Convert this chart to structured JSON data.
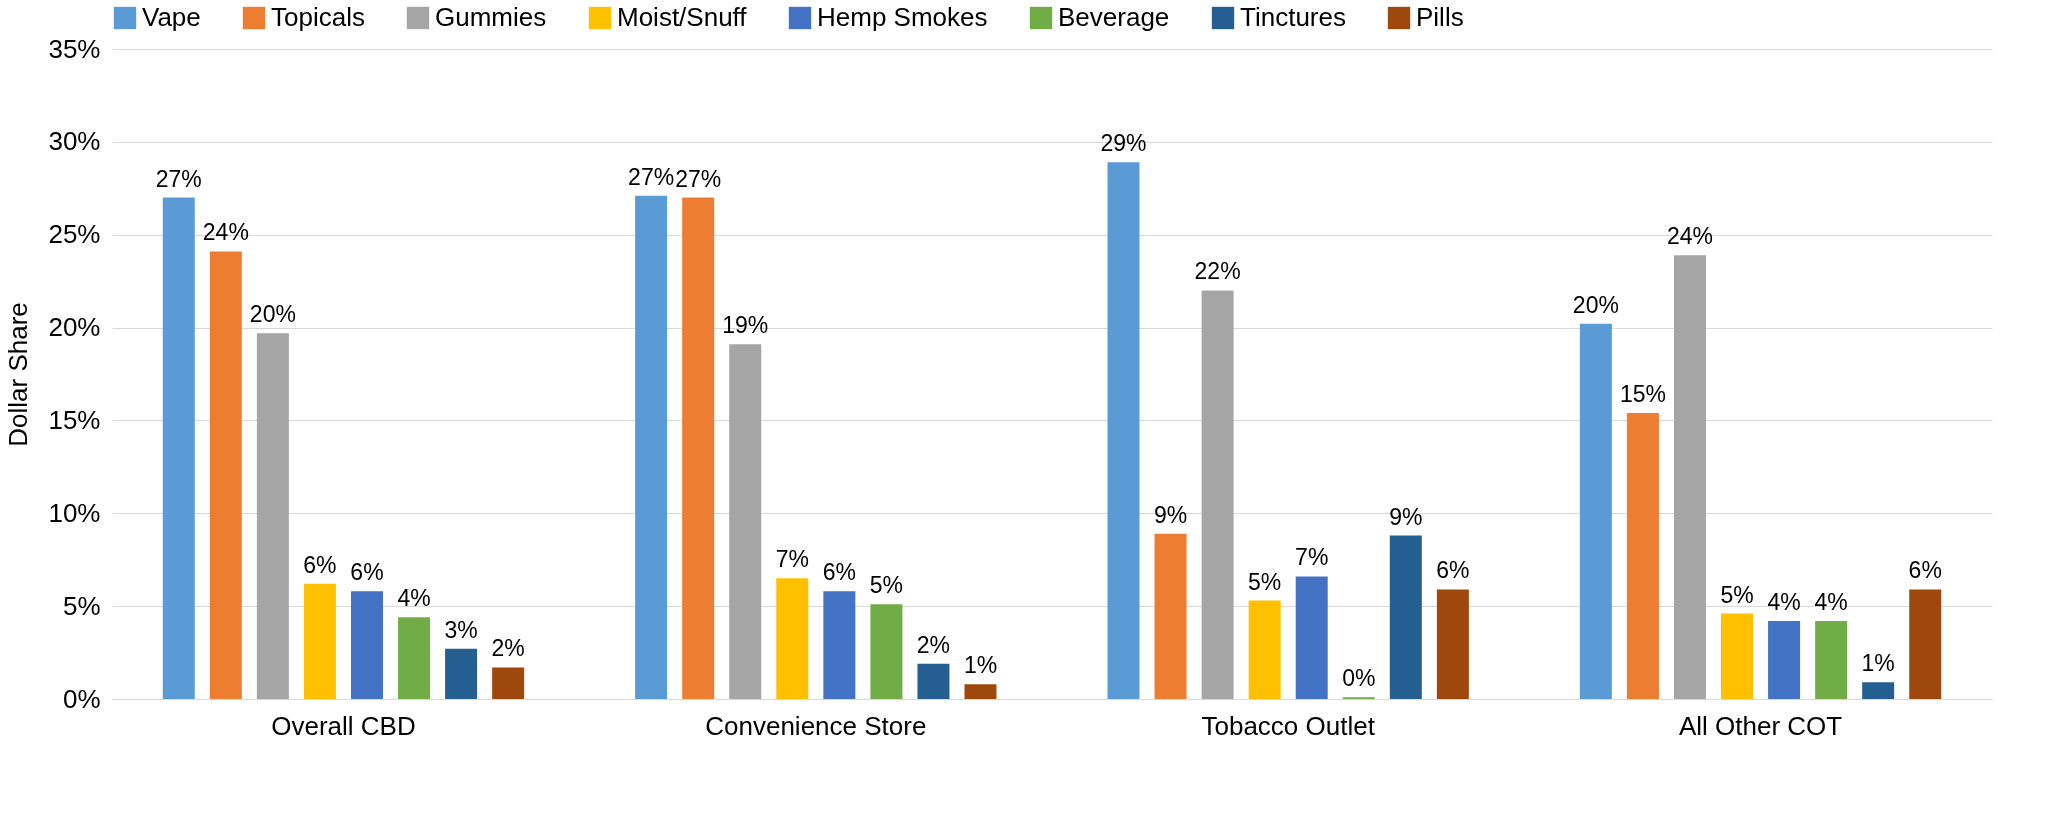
{
  "chart_data": {
    "type": "bar",
    "ylabel": "Dollar Share",
    "categories": [
      "Overall CBD",
      "Convenience Store",
      "Tobacco Outlet",
      "All Other COT"
    ],
    "series": [
      {
        "name": "Vape",
        "color": "#5b9bd5",
        "values": [
          27.0,
          27.1,
          28.9,
          20.2
        ],
        "value_labels": [
          "27%",
          "27%",
          "29%",
          "20%"
        ]
      },
      {
        "name": "Topicals",
        "color": "#ed7d31",
        "values": [
          24.1,
          27.0,
          8.9,
          15.4
        ],
        "value_labels": [
          "24%",
          "27%",
          "9%",
          "15%"
        ]
      },
      {
        "name": "Gummies",
        "color": "#a5a5a5",
        "values": [
          19.7,
          19.1,
          22.0,
          23.9
        ],
        "value_labels": [
          "20%",
          "19%",
          "22%",
          "24%"
        ]
      },
      {
        "name": "Moist/Snuff",
        "color": "#ffc000",
        "values": [
          6.2,
          6.5,
          5.3,
          4.6
        ],
        "value_labels": [
          "6%",
          "7%",
          "5%",
          "5%"
        ]
      },
      {
        "name": "Hemp Smokes",
        "color": "#4472c4",
        "values": [
          5.8,
          5.8,
          6.6,
          4.2
        ],
        "value_labels": [
          "6%",
          "6%",
          "7%",
          "4%"
        ]
      },
      {
        "name": "Beverage",
        "color": "#70ad47",
        "values": [
          4.4,
          5.1,
          0.1,
          4.2
        ],
        "value_labels": [
          "4%",
          "5%",
          "0%",
          "4%"
        ]
      },
      {
        "name": "Tinctures",
        "color": "#255e91",
        "values": [
          2.7,
          1.9,
          8.8,
          0.9
        ],
        "value_labels": [
          "3%",
          "2%",
          "9%",
          "1%"
        ]
      },
      {
        "name": "Pills",
        "color": "#9e480e",
        "values": [
          1.7,
          0.8,
          5.9,
          5.9
        ],
        "value_labels": [
          "2%",
          "1%",
          "6%",
          "6%"
        ]
      }
    ],
    "ylim": [
      0,
      35
    ],
    "yticks": [
      {
        "value": 0,
        "label": "0%"
      },
      {
        "value": 5,
        "label": "5%"
      },
      {
        "value": 10,
        "label": "10%"
      },
      {
        "value": 15,
        "label": "15%"
      },
      {
        "value": 20,
        "label": "20%"
      },
      {
        "value": 25,
        "label": "25%"
      },
      {
        "value": 30,
        "label": "30%"
      },
      {
        "value": 35,
        "label": "35%"
      }
    ],
    "grid": "y",
    "legend": "top"
  }
}
